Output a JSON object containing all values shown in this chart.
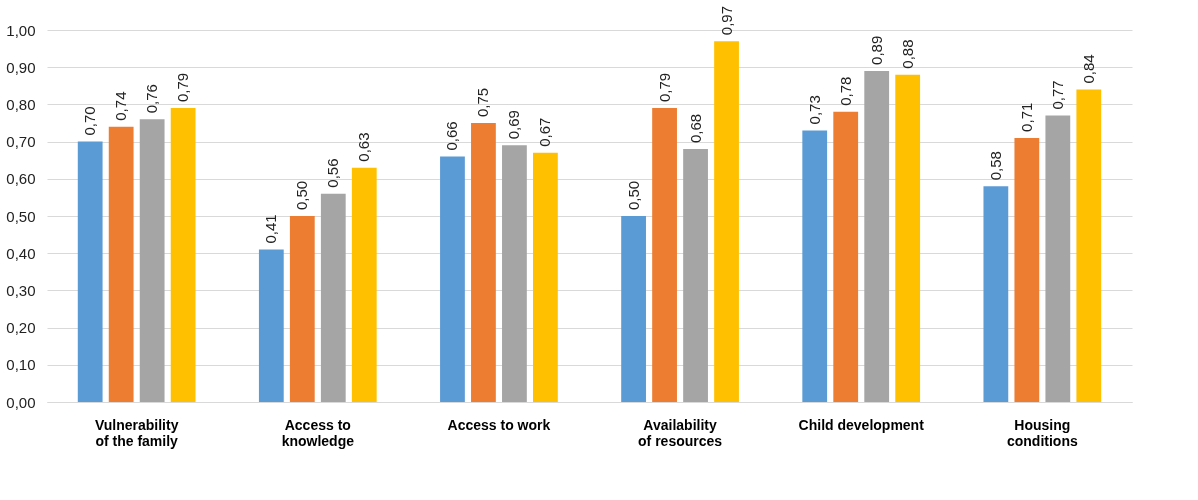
{
  "chart_data": {
    "type": "bar",
    "categories": [
      "Vulnerability of the family",
      "Access to knowledge",
      "Access to work",
      "Availability of resources",
      "Child development",
      "Housing conditions"
    ],
    "series": [
      {
        "color": "#5b9bd5",
        "values": [
          0.7,
          0.41,
          0.66,
          0.5,
          0.73,
          0.58
        ],
        "value_labels": [
          "0,70",
          "0,41",
          "0,66",
          "0,50",
          "0,73",
          "0,58"
        ]
      },
      {
        "color": "#ed7d31",
        "values": [
          0.74,
          0.5,
          0.75,
          0.79,
          0.78,
          0.71
        ],
        "value_labels": [
          "0,74",
          "0,50",
          "0,75",
          "0,79",
          "0,78",
          "0,71"
        ]
      },
      {
        "color": "#a5a5a5",
        "values": [
          0.76,
          0.56,
          0.69,
          0.68,
          0.89,
          0.77
        ],
        "value_labels": [
          "0,76",
          "0,56",
          "0,69",
          "0,68",
          "0,89",
          "0,77"
        ]
      },
      {
        "color": "#ffc000",
        "values": [
          0.79,
          0.63,
          0.67,
          0.97,
          0.88,
          0.84
        ],
        "value_labels": [
          "0,79",
          "0,63",
          "0,67",
          "0,97",
          "0,88",
          "0,84"
        ]
      }
    ],
    "ylim": [
      0,
      1
    ],
    "yticks": [
      {
        "value": 0,
        "label": "0,00"
      },
      {
        "value": 0.1,
        "label": "0,10"
      },
      {
        "value": 0.2,
        "label": "0,20"
      },
      {
        "value": 0.3,
        "label": "0,30"
      },
      {
        "value": 0.4,
        "label": "0,40"
      },
      {
        "value": 0.5,
        "label": "0,50"
      },
      {
        "value": 0.6,
        "label": "0,60"
      },
      {
        "value": 0.7,
        "label": "0,70"
      },
      {
        "value": 0.8,
        "label": "0,80"
      },
      {
        "value": 0.9,
        "label": "0,90"
      },
      {
        "value": 1,
        "label": "1,00"
      }
    ],
    "grid": "y",
    "legend": false
  }
}
